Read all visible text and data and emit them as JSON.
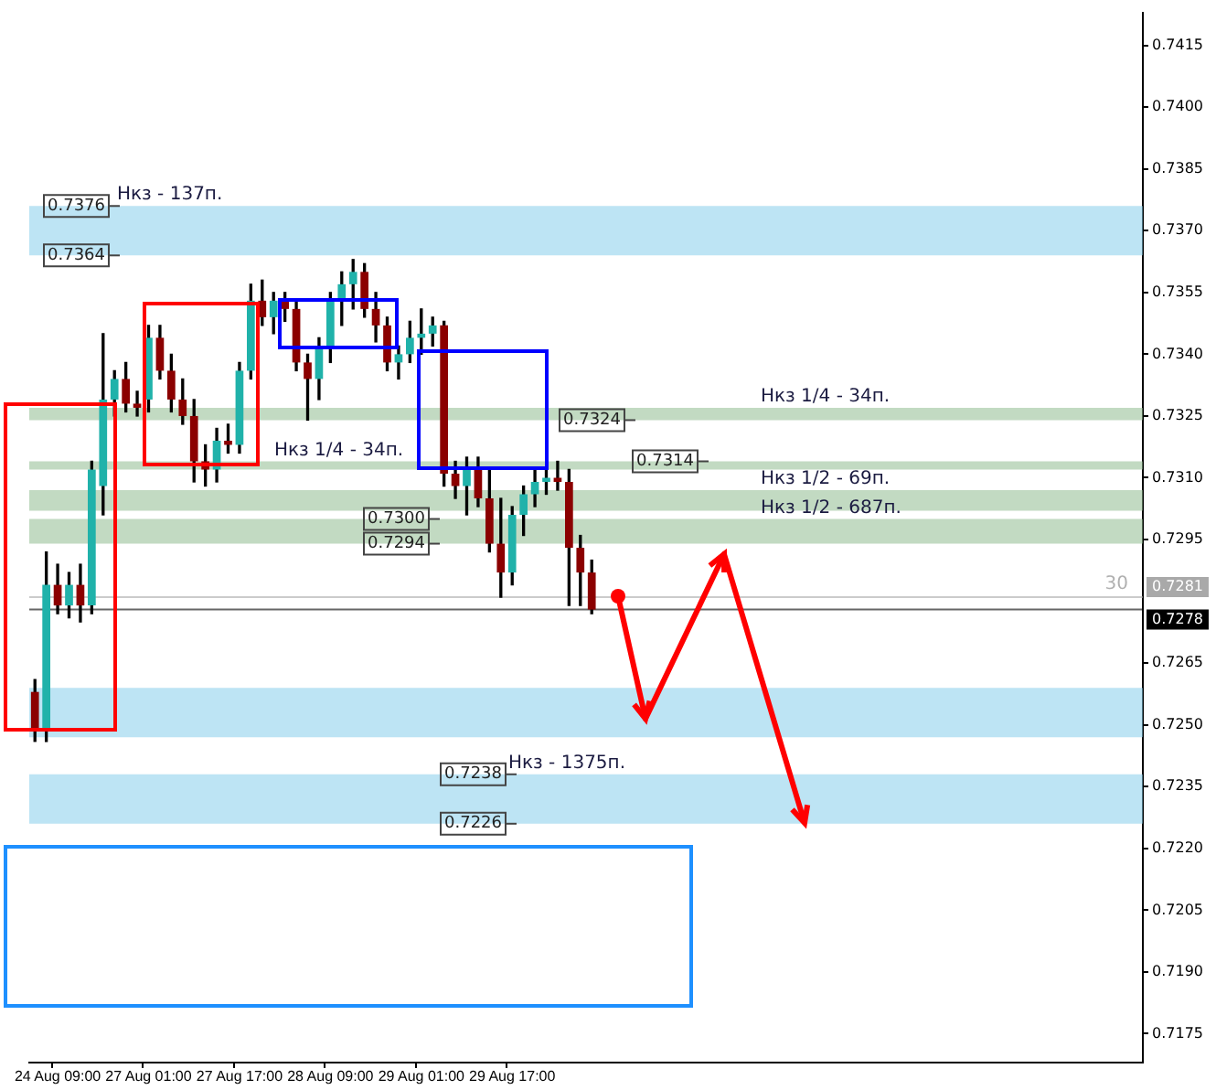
{
  "chart_data": {
    "type": "candlestick",
    "categories": [
      null,
      null,
      "24 Aug 09:00",
      null,
      null,
      null,
      null,
      null,
      null,
      null,
      "27 Aug 01:00",
      null,
      null,
      null,
      null,
      null,
      null,
      null,
      "27 Aug 17:00",
      null,
      null,
      null,
      null,
      null,
      null,
      null,
      "28 Aug 09:00",
      null,
      null,
      null,
      null,
      null,
      null,
      null,
      "29 Aug 01:00",
      null,
      null,
      null,
      null,
      null,
      null,
      null,
      "29 Aug 17:00",
      null,
      null,
      null,
      null,
      null,
      null,
      null,
      null,
      null,
      null,
      null,
      null,
      null,
      null,
      null,
      null,
      null,
      null,
      null,
      null,
      null,
      null,
      null,
      null,
      null,
      null,
      null,
      null,
      null,
      null,
      null,
      null,
      null,
      null,
      null,
      null,
      null,
      null,
      null,
      null,
      null,
      null,
      null,
      null,
      null,
      null,
      null,
      null,
      null,
      null,
      null,
      null,
      null,
      null,
      null
    ],
    "ohlc": [
      [
        0.7258,
        0.7261,
        0.7246,
        0.7249
      ],
      [
        0.7249,
        0.7292,
        0.7246,
        0.7284
      ],
      [
        0.7284,
        0.7289,
        0.7277,
        0.7279
      ],
      [
        0.7279,
        0.7287,
        0.7276,
        0.7284
      ],
      [
        0.7284,
        0.7289,
        0.7275,
        0.7279
      ],
      [
        0.7279,
        0.7314,
        0.7277,
        0.7312
      ],
      [
        0.7308,
        0.7345,
        0.7301,
        0.7329
      ],
      [
        0.7329,
        0.7336,
        0.7325,
        0.7334
      ],
      [
        0.7334,
        0.7338,
        0.7326,
        0.7328
      ],
      [
        0.7328,
        0.7331,
        0.7325,
        0.7327
      ],
      [
        0.7329,
        0.7347,
        0.7326,
        0.7344
      ],
      [
        0.7344,
        0.7347,
        0.7334,
        0.7336
      ],
      [
        0.7336,
        0.734,
        0.7326,
        0.7329
      ],
      [
        0.7329,
        0.7334,
        0.7323,
        0.7325
      ],
      [
        0.7325,
        0.7329,
        0.7309,
        0.7314
      ],
      [
        0.7314,
        0.7318,
        0.7308,
        0.7312
      ],
      [
        0.7312,
        0.7322,
        0.7309,
        0.7319
      ],
      [
        0.7319,
        0.7323,
        0.7316,
        0.7318
      ],
      [
        0.7318,
        0.7338,
        0.7316,
        0.7336
      ],
      [
        0.7336,
        0.7357,
        0.7334,
        0.7353
      ],
      [
        0.7353,
        0.7358,
        0.7347,
        0.7349
      ],
      [
        0.7349,
        0.7355,
        0.7345,
        0.7353
      ],
      [
        0.7353,
        0.7355,
        0.7348,
        0.7351
      ],
      [
        0.7351,
        0.7353,
        0.7336,
        0.7338
      ],
      [
        0.7338,
        0.734,
        0.7324,
        0.7334
      ],
      [
        0.7334,
        0.7344,
        0.7329,
        0.7342
      ],
      [
        0.7342,
        0.7355,
        0.7338,
        0.7353
      ],
      [
        0.7353,
        0.736,
        0.7347,
        0.7357
      ],
      [
        0.7357,
        0.7363,
        0.7351,
        0.736
      ],
      [
        0.736,
        0.7362,
        0.7349,
        0.7351
      ],
      [
        0.7351,
        0.7355,
        0.7343,
        0.7347
      ],
      [
        0.7347,
        0.7349,
        0.7336,
        0.7338
      ],
      [
        0.7338,
        0.7342,
        0.7334,
        0.734
      ],
      [
        0.734,
        0.7348,
        0.7338,
        0.7344
      ],
      [
        0.7344,
        0.7351,
        0.734,
        0.7345
      ],
      [
        0.7345,
        0.7349,
        0.7342,
        0.7347
      ],
      [
        0.7347,
        0.7348,
        0.7308,
        0.7311
      ],
      [
        0.7311,
        0.7314,
        0.7305,
        0.7308
      ],
      [
        0.7308,
        0.7315,
        0.7301,
        0.7312
      ],
      [
        0.7312,
        0.7315,
        0.7303,
        0.7305
      ],
      [
        0.7305,
        0.7312,
        0.7292,
        0.7294
      ],
      [
        0.7294,
        0.7305,
        0.7281,
        0.7287
      ],
      [
        0.7287,
        0.7303,
        0.7284,
        0.7301
      ],
      [
        0.7301,
        0.7308,
        0.7296,
        0.7306
      ],
      [
        0.7306,
        0.7312,
        0.7303,
        0.7309
      ],
      [
        0.7309,
        0.7312,
        0.7306,
        0.731
      ],
      [
        0.731,
        0.7314,
        0.7307,
        0.7309
      ],
      [
        0.7309,
        0.7312,
        0.7279,
        0.7293
      ],
      [
        0.7293,
        0.7296,
        0.7279,
        0.7287
      ],
      [
        0.7287,
        0.729,
        0.7277,
        0.7278
      ],
      null,
      null,
      null,
      null,
      null,
      null,
      null,
      null,
      null,
      null,
      null,
      null,
      null,
      null,
      null,
      null,
      null,
      null,
      null,
      null,
      null,
      null,
      null,
      null,
      null,
      null,
      null,
      null,
      null,
      null,
      null,
      null,
      null,
      null,
      null,
      null,
      null,
      null,
      null,
      null,
      null,
      null,
      null,
      null,
      null,
      null,
      null,
      null
    ],
    "ylim": [
      0.7168,
      0.7423
    ],
    "yticks": [
      0.7175,
      {
        "value": 0.719,
        "label": "0.7190"
      },
      0.7205,
      {
        "value": 0.722,
        "label": "0.7220"
      },
      0.7235,
      {
        "value": 0.725,
        "label": "0.7250"
      },
      0.7265,
      0.7295,
      {
        "value": 0.731,
        "label": "0.7310"
      },
      0.7325,
      {
        "value": 0.734,
        "label": "0.7340"
      },
      0.7355,
      {
        "value": 0.737,
        "label": "0.7370"
      },
      0.7385,
      {
        "value": 0.74,
        "label": "0.7400"
      },
      0.7415
    ],
    "bands": [
      {
        "axis": "y",
        "from": 0.7364,
        "to": 0.7376,
        "label": "Нкз - 137п.",
        "color": "#87ceeb"
      },
      {
        "axis": "y",
        "from": 0.7324,
        "to": 0.7327,
        "label": "Нкз 1/4 - 34п.",
        "color": "#8fbc8f"
      },
      {
        "axis": "y",
        "from": 0.7312,
        "to": 0.7314,
        "label": "Нкз 1/4 - 34п.",
        "color": "#8fbc8f"
      },
      {
        "axis": "y",
        "from": 0.7302,
        "to": 0.7307,
        "label": "Нкз 1/2 - 69п.",
        "color": "#8fbc8f"
      },
      {
        "axis": "y",
        "from": 0.7294,
        "to": 0.73,
        "label": "Нкз 1/2 - 687п.",
        "color": "#8fbc8f"
      },
      {
        "axis": "y",
        "from": 0.7226,
        "to": 0.7238,
        "label": "Нкз - 1375п.",
        "color": "#87ceeb"
      },
      {
        "axis": "y",
        "from": 0.7247,
        "to": 0.7259,
        "color": "#87ceeb"
      }
    ],
    "ref_lines": [
      {
        "axis": "y",
        "value": 0.7281,
        "label": "0.7281",
        "color": "#a9a9a9"
      },
      {
        "axis": "y",
        "value": 0.7278,
        "label": "0.7278",
        "color": "#000000"
      }
    ],
    "annotations": [
      {
        "text": "0.7376",
        "y": 0.7376
      },
      {
        "text": "0.7364",
        "y": 0.7364
      },
      {
        "text": "0.7324",
        "y": 0.7324
      },
      {
        "text": "0.7314",
        "y": 0.7314
      },
      {
        "text": "0.7300",
        "y": 0.73
      },
      {
        "text": "0.7294",
        "y": 0.7294
      },
      {
        "text": "0.7238",
        "y": 0.7238
      },
      {
        "text": "0.7226",
        "y": 0.7226
      },
      "30"
    ]
  }
}
